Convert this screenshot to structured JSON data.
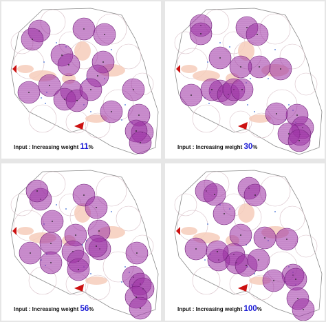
{
  "colors": {
    "circle_fill": "#a035a8",
    "circle_stroke": "#6e1f78",
    "outline": "#8a8a8a",
    "light_circle": "#d8c0c8",
    "blob": "#f6cdbb",
    "marker": "#cc1111",
    "dot_blue": "#3c6ad2",
    "caption_number": "#1a1ad6"
  },
  "panels": [
    {
      "caption_prefix": "Input : Increasing weight ",
      "value": "11",
      "unit": "%",
      "circles": [
        [
          55,
          43
        ],
        [
          45,
          55
        ],
        [
          120,
          40
        ],
        [
          150,
          48
        ],
        [
          88,
          78
        ],
        [
          98,
          92
        ],
        [
          148,
          88
        ],
        [
          140,
          108
        ],
        [
          40,
          132
        ],
        [
          70,
          122
        ],
        [
          102,
          130
        ],
        [
          92,
          142
        ],
        [
          110,
          144
        ],
        [
          130,
          128
        ],
        [
          192,
          128
        ],
        [
          160,
          160
        ],
        [
          200,
          165
        ],
        [
          205,
          190
        ],
        [
          196,
          188
        ],
        [
          202,
          205
        ]
      ]
    },
    {
      "caption_prefix": "Input : Increasing weight ",
      "value": "30",
      "unit": "%",
      "circles": [
        [
          52,
          35
        ],
        [
          52,
          47
        ],
        [
          119,
          38
        ],
        [
          134,
          48
        ],
        [
          80,
          82
        ],
        [
          137,
          95
        ],
        [
          110,
          95
        ],
        [
          80,
          130
        ],
        [
          38,
          136
        ],
        [
          68,
          128
        ],
        [
          92,
          135
        ],
        [
          100,
          128
        ],
        [
          112,
          128
        ],
        [
          168,
          98
        ],
        [
          192,
          165
        ],
        [
          162,
          163
        ],
        [
          200,
          183
        ],
        [
          196,
          193
        ],
        [
          180,
          192
        ],
        [
          195,
          202
        ]
      ]
    },
    {
      "caption_prefix": "Input : Increasing weight ",
      "value": "56",
      "unit": "%",
      "circles": [
        [
          57,
          52
        ],
        [
          52,
          40
        ],
        [
          74,
          84
        ],
        [
          120,
          46
        ],
        [
          138,
          64
        ],
        [
          108,
          104
        ],
        [
          142,
          98
        ],
        [
          42,
          130
        ],
        [
          72,
          116
        ],
        [
          72,
          144
        ],
        [
          104,
          128
        ],
        [
          112,
          142
        ],
        [
          112,
          154
        ],
        [
          143,
          124
        ],
        [
          138,
          120
        ],
        [
          197,
          130
        ],
        [
          192,
          165
        ],
        [
          202,
          175
        ],
        [
          206,
          182
        ],
        [
          196,
          194
        ],
        [
          202,
          210
        ]
      ]
    },
    {
      "caption_prefix": "Input : Increasing weight ",
      "value": "100",
      "unit": "%",
      "circles": [
        [
          60,
          40
        ],
        [
          72,
          45
        ],
        [
          122,
          36
        ],
        [
          131,
          46
        ],
        [
          86,
          73
        ],
        [
          110,
          104
        ],
        [
          145,
          108
        ],
        [
          100,
          132
        ],
        [
          78,
          140
        ],
        [
          45,
          124
        ],
        [
          76,
          128
        ],
        [
          104,
          144
        ],
        [
          118,
          148
        ],
        [
          136,
          140
        ],
        [
          177,
          110
        ],
        [
          186,
          162
        ],
        [
          158,
          170
        ],
        [
          190,
          168
        ],
        [
          193,
          196
        ],
        [
          201,
          212
        ]
      ]
    }
  ]
}
